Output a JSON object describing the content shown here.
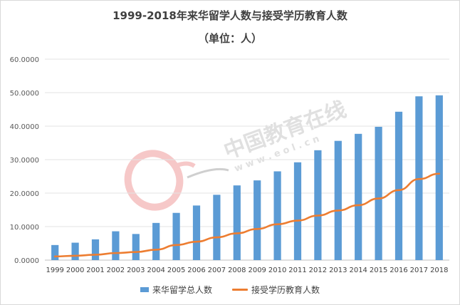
{
  "chart_data": {
    "type": "bar",
    "title": "1999-2018年来华留学人数与接受学历教育人数",
    "subtitle": "（单位：人）",
    "categories": [
      "1999",
      "2000",
      "2001",
      "2002",
      "2003",
      "2004",
      "2005",
      "2006",
      "2007",
      "2008",
      "2009",
      "2010",
      "2011",
      "2012",
      "2013",
      "2014",
      "2015",
      "2016",
      "2017",
      "2018"
    ],
    "series": [
      {
        "name": "来华留学总人数",
        "type": "bar",
        "color": "#5b9bd5",
        "values": [
          4.5,
          5.2,
          6.2,
          8.6,
          7.8,
          11.1,
          14.1,
          16.3,
          19.5,
          22.3,
          23.8,
          26.5,
          29.2,
          32.8,
          35.6,
          37.7,
          39.8,
          44.3,
          48.9,
          49.2
        ]
      },
      {
        "name": "接受学历教育人数",
        "type": "line",
        "color": "#ed7d31",
        "values": [
          1.1,
          1.3,
          1.6,
          2.1,
          2.4,
          3.1,
          4.5,
          5.5,
          6.8,
          8.0,
          9.3,
          10.7,
          11.8,
          13.3,
          14.8,
          16.4,
          18.4,
          20.9,
          24.2,
          25.8
        ]
      }
    ],
    "yticks": [
      "0.0000",
      "10.0000",
      "20.0000",
      "30.0000",
      "40.0000",
      "50.0000",
      "60.0000"
    ],
    "ylim": [
      0,
      60
    ],
    "grid": true,
    "legend_position": "bottom"
  },
  "watermark": {
    "text_cn": "中国教育在线",
    "text_url": "w w w . e o l . c n",
    "logo_text": "eol",
    "color": "#d9d9d9",
    "logo_color": "#f4b6b6"
  }
}
